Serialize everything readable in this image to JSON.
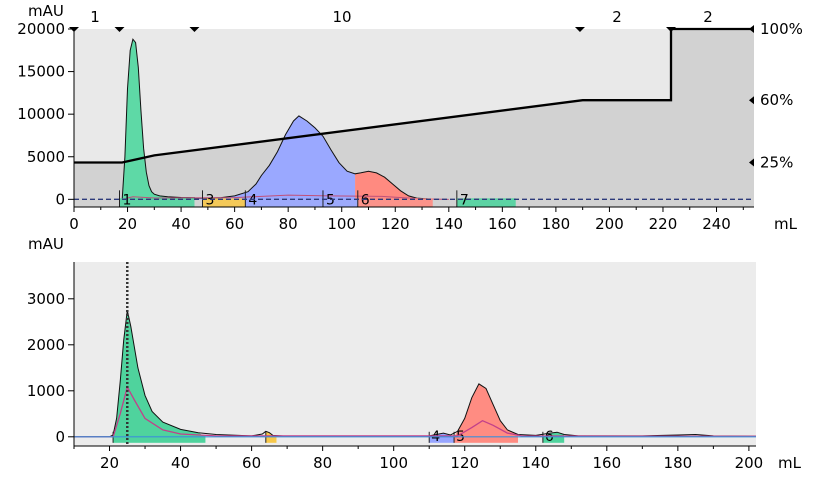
{
  "chart_data": [
    {
      "type": "area",
      "ylabel": "mAU",
      "xlabel": "mL",
      "xlim": [
        0,
        254
      ],
      "ylim": [
        -900,
        20000
      ],
      "x_ticks": [
        0,
        20,
        40,
        60,
        80,
        100,
        120,
        140,
        160,
        180,
        200,
        220,
        240
      ],
      "y_ticks": [
        0,
        5000,
        10000,
        15000,
        20000
      ],
      "segment_markers": [
        {
          "x": 0,
          "label": "1"
        },
        {
          "x": 17,
          "label": "10"
        },
        {
          "x": 189,
          "label": "2"
        },
        {
          "x": 223,
          "label": "2"
        }
      ],
      "gradient": {
        "label_100": "100%",
        "label_60": "60%",
        "label_25": "25%",
        "points": [
          [
            0,
            25
          ],
          [
            18,
            25
          ],
          [
            30,
            29
          ],
          [
            190,
            60
          ],
          [
            223,
            60
          ],
          [
            223,
            100
          ],
          [
            255,
            100
          ]
        ]
      },
      "series": [
        {
          "color": "#5ed9a6",
          "points": [
            [
              18,
              0
            ],
            [
              19,
              5000
            ],
            [
              20,
              13000
            ],
            [
              21,
              17500
            ],
            [
              22,
              18800
            ],
            [
              23,
              18400
            ],
            [
              24,
              15500
            ],
            [
              25,
              10500
            ],
            [
              26,
              6000
            ],
            [
              27,
              3200
            ],
            [
              28,
              1600
            ],
            [
              29,
              900
            ],
            [
              30,
              600
            ],
            [
              32,
              400
            ],
            [
              35,
              300
            ],
            [
              40,
              220
            ],
            [
              45,
              180
            ]
          ]
        },
        {
          "color": "#9aa8ff",
          "points": [
            [
              45,
              150
            ],
            [
              50,
              150
            ],
            [
              55,
              200
            ],
            [
              60,
              400
            ],
            [
              65,
              900
            ],
            [
              68,
              1800
            ],
            [
              70,
              2800
            ],
            [
              73,
              4000
            ],
            [
              76,
              5600
            ],
            [
              79,
              7600
            ],
            [
              82,
              9200
            ],
            [
              84,
              9800
            ],
            [
              87,
              9200
            ],
            [
              90,
              8400
            ],
            [
              93,
              7400
            ],
            [
              96,
              5800
            ],
            [
              99,
              4300
            ],
            [
              102,
              3300
            ],
            [
              105,
              3000
            ]
          ]
        },
        {
          "color": "#ff8a80",
          "points": [
            [
              105,
              3000
            ],
            [
              107,
              3100
            ],
            [
              110,
              3300
            ],
            [
              113,
              3100
            ],
            [
              116,
              2600
            ],
            [
              119,
              1800
            ],
            [
              122,
              1000
            ],
            [
              125,
              400
            ],
            [
              128,
              150
            ],
            [
              132,
              50
            ]
          ]
        }
      ],
      "fractions": [
        {
          "label": "1",
          "x0": 17,
          "x1": 45,
          "color": "#4fd39d"
        },
        {
          "label": "3",
          "x0": 48,
          "x1": 64,
          "color": "#f7c84a"
        },
        {
          "label": "4",
          "x0": 64,
          "x1": 93,
          "color": "#97a5ff"
        },
        {
          "label": "5",
          "x0": 93,
          "x1": 106,
          "color": "#97a5ff"
        },
        {
          "label": "6",
          "x0": 106,
          "x1": 134,
          "color": "#ff8c82"
        },
        {
          "label": "7",
          "x0": 143,
          "x1": 165,
          "color": "#4fd39d"
        }
      ]
    },
    {
      "type": "area",
      "ylabel": "mAU",
      "xlabel": "mL",
      "xlim": [
        10,
        202
      ],
      "ylim": [
        -200,
        3800
      ],
      "x_ticks": [
        20,
        40,
        60,
        80,
        100,
        120,
        140,
        160,
        180,
        200
      ],
      "y_ticks": [
        0,
        1000,
        2000,
        3000
      ],
      "dotted_marker_x": 25,
      "main_trace": [
        [
          10,
          0
        ],
        [
          20,
          0
        ],
        [
          21,
          40
        ],
        [
          22,
          400
        ],
        [
          23,
          1200
        ],
        [
          24,
          2100
        ],
        [
          25,
          2750
        ],
        [
          26,
          2400
        ],
        [
          28,
          1500
        ],
        [
          30,
          900
        ],
        [
          32,
          550
        ],
        [
          35,
          320
        ],
        [
          40,
          160
        ],
        [
          45,
          90
        ],
        [
          50,
          50
        ],
        [
          60,
          20
        ],
        [
          63,
          60
        ],
        [
          64,
          120
        ],
        [
          65,
          90
        ],
        [
          66,
          30
        ],
        [
          70,
          10
        ],
        [
          100,
          10
        ],
        [
          110,
          20
        ],
        [
          114,
          80
        ],
        [
          116,
          40
        ],
        [
          118,
          120
        ],
        [
          120,
          400
        ],
        [
          122,
          850
        ],
        [
          124,
          1150
        ],
        [
          126,
          1050
        ],
        [
          128,
          700
        ],
        [
          130,
          350
        ],
        [
          132,
          150
        ],
        [
          135,
          50
        ],
        [
          140,
          30
        ],
        [
          144,
          80
        ],
        [
          146,
          100
        ],
        [
          148,
          50
        ],
        [
          152,
          20
        ],
        [
          170,
          20
        ],
        [
          180,
          40
        ],
        [
          185,
          50
        ],
        [
          190,
          20
        ],
        [
          202,
          10
        ]
      ],
      "secondary_trace": [
        [
          10,
          0
        ],
        [
          21,
          0
        ],
        [
          23,
          500
        ],
        [
          25,
          1080
        ],
        [
          27,
          800
        ],
        [
          30,
          400
        ],
        [
          35,
          150
        ],
        [
          40,
          60
        ],
        [
          50,
          20
        ],
        [
          118,
          20
        ],
        [
          122,
          200
        ],
        [
          125,
          350
        ],
        [
          128,
          250
        ],
        [
          132,
          80
        ],
        [
          136,
          20
        ],
        [
          202,
          10
        ]
      ],
      "baseline_trace": [
        [
          10,
          0
        ],
        [
          202,
          0
        ]
      ],
      "fractions": [
        {
          "label": "",
          "x0": 21,
          "x1": 47,
          "color": "#4fd39d"
        },
        {
          "label": "",
          "x0": 64,
          "x1": 67,
          "color": "#f7c84a"
        },
        {
          "label": "4",
          "x0": 110,
          "x1": 117,
          "color": "#97a5ff"
        },
        {
          "label": "5",
          "x0": 117,
          "x1": 135,
          "color": "#ff8c82"
        },
        {
          "label": "6",
          "x0": 142,
          "x1": 148,
          "color": "#4fd39d"
        }
      ]
    }
  ]
}
